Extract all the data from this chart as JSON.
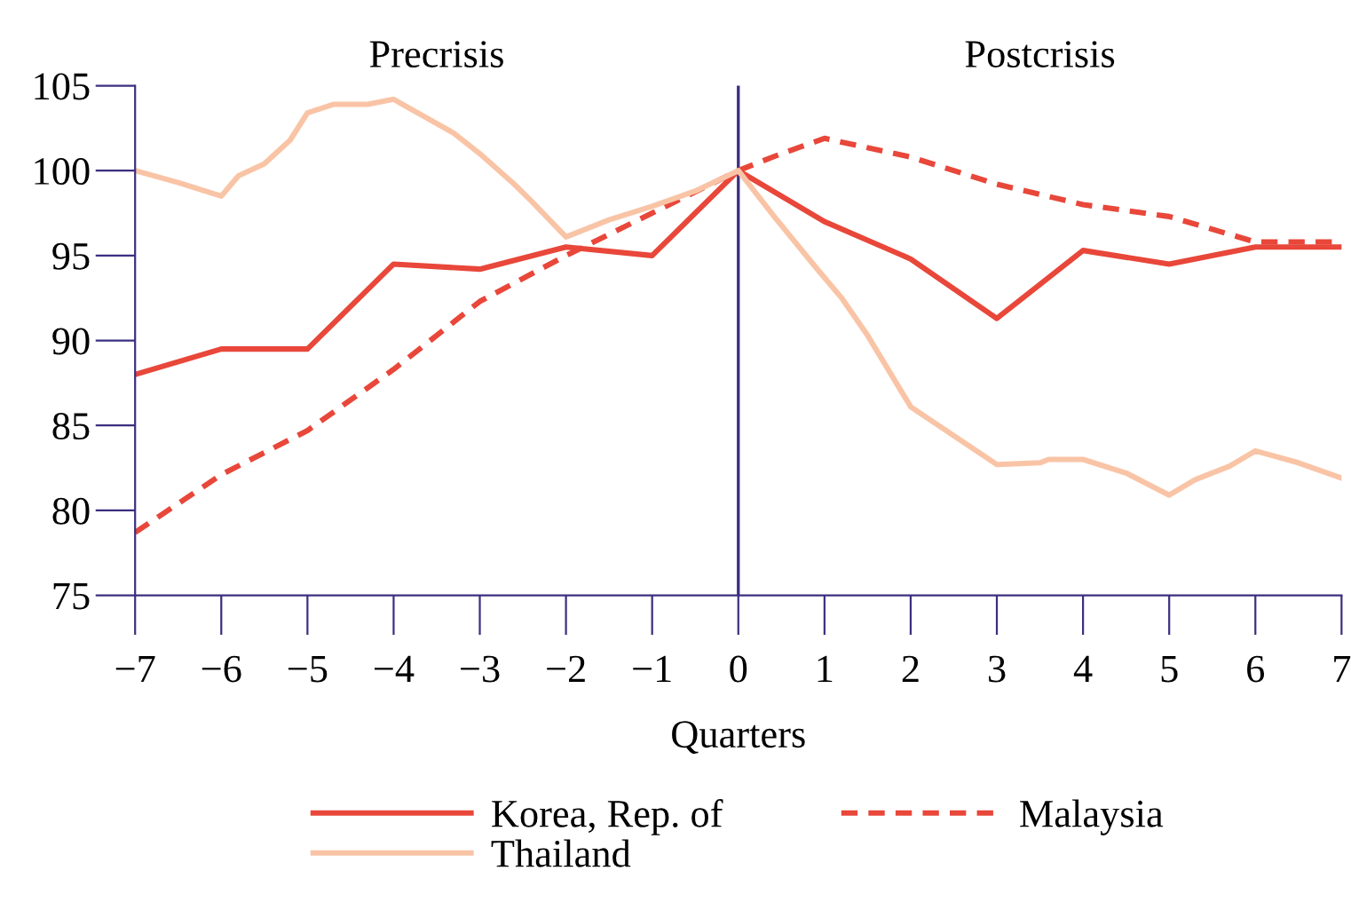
{
  "chart_data": {
    "type": "line",
    "xlabel": "Quarters",
    "annotations": [
      "Precrisis",
      "Postcrisis"
    ],
    "xlim": [
      -7,
      7
    ],
    "xticks": [
      {
        "value": -7,
        "label": "−7"
      },
      {
        "value": -6,
        "label": "−6"
      },
      {
        "value": -5,
        "label": "−5"
      },
      {
        "value": -4,
        "label": "−4"
      },
      {
        "value": -3,
        "label": "−3"
      },
      {
        "value": -2,
        "label": "−2"
      },
      {
        "value": -1,
        "label": "−1"
      },
      0,
      1,
      2,
      3,
      4,
      5,
      6,
      7
    ],
    "ylim": [
      75,
      105
    ],
    "yticks": [
      75,
      80,
      85,
      90,
      95,
      100,
      105
    ],
    "grid": false,
    "legend": "bottom",
    "ref_lines": [
      {
        "axis": "x",
        "value": 0,
        "color": "#3b2f80"
      }
    ],
    "series": [
      {
        "name": "Korea, Rep. of",
        "color": "#e8473a",
        "line_style": "solid",
        "x": [
          -7,
          -6,
          -5,
          -4,
          -3,
          -2,
          -1,
          0,
          1,
          2,
          3,
          4,
          5,
          6,
          7
        ],
        "values": [
          88,
          89.5,
          89.5,
          94.5,
          94.2,
          95.5,
          95,
          100,
          97,
          94.8,
          91.3,
          95.3,
          94.5,
          95.5,
          95.5
        ]
      },
      {
        "name": "Malaysia",
        "color": "#e8473a",
        "line_style": "dashed",
        "x": [
          -7,
          -6,
          -5,
          -4,
          -3,
          -2,
          -1,
          0,
          0.5,
          1,
          2,
          3,
          4,
          5,
          6,
          7
        ],
        "values": [
          78.7,
          82.1,
          84.7,
          88.3,
          92.3,
          95.0,
          97.5,
          100,
          101,
          101.9,
          100.8,
          99.2,
          98,
          97.3,
          95.8,
          95.8
        ]
      },
      {
        "name": "Thailand",
        "color": "#f9c4a6",
        "line_style": "solid",
        "x": [
          -7,
          -6.5,
          -6,
          -5.8,
          -5.5,
          -5.2,
          -5,
          -4.7,
          -4.3,
          -4,
          -3.3,
          -3,
          -2.6,
          -2.4,
          -2,
          -1.5,
          -1,
          -0.5,
          0,
          0.4,
          0.9,
          1.2,
          1.5,
          2,
          2.5,
          3,
          3.5,
          3.6,
          4,
          4.5,
          5,
          5.3,
          5.7,
          6,
          6.5,
          7
        ],
        "values": [
          100,
          99.3,
          98.5,
          99.7,
          100.4,
          101.8,
          103.4,
          103.9,
          103.9,
          104.2,
          102.2,
          101.0,
          99.2,
          98.2,
          96.1,
          97.1,
          97.9,
          98.8,
          100,
          97.4,
          94.3,
          92.5,
          90.3,
          86.1,
          84.4,
          82.7,
          82.8,
          83.0,
          83.0,
          82.2,
          80.9,
          81.8,
          82.6,
          83.5,
          82.8,
          81.9
        ]
      }
    ]
  }
}
